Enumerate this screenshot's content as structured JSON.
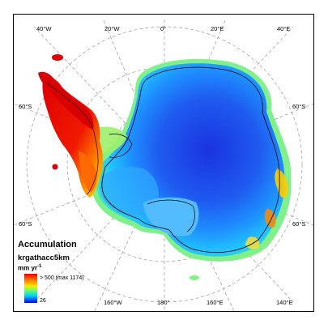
{
  "map": {
    "lon_labels_top": [
      "40°W",
      "20°W",
      "0°",
      "20°E",
      "40°E"
    ],
    "lon_labels_bottom": [
      "160°W",
      "180°",
      "160°E",
      "140°E"
    ],
    "lat_labels_left": [
      "60°S",
      "60°S"
    ],
    "lat_labels_right": [
      "60°S",
      "60°S"
    ],
    "colors": {
      "high": "#e60000",
      "mid_high": "#ffe600",
      "mid": "#66ff66",
      "mid_low": "#00ccff",
      "low": "#0000e6",
      "coast": "#000000",
      "graticule": "#9a9a9a"
    }
  },
  "legend": {
    "title": "Accumulation",
    "variable": "krgathacc5km",
    "unit": "mm yr",
    "unit_exponent": "-1",
    "max_label": "> 500 (max 1174)",
    "min_label": "26"
  }
}
